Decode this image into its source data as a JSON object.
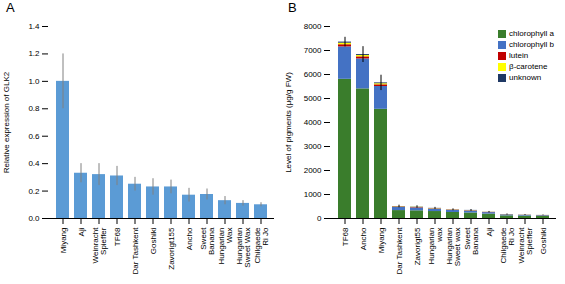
{
  "chart_data": [
    {
      "type": "bar",
      "title": "A",
      "categories": [
        "Miyang",
        "Aji",
        "Weinracht\nSpieffer",
        "TF68",
        "Dar Tashkent",
        "Goshiki",
        "Zavorigt155",
        "Ancho",
        "Sweet\nBanana",
        "Hungarian\nWax",
        "Hungarian\nSweet Wax",
        "Chilgaede\nRi Jo"
      ],
      "values": [
        1.0,
        0.33,
        0.32,
        0.31,
        0.25,
        0.23,
        0.23,
        0.17,
        0.175,
        0.13,
        0.11,
        0.1
      ],
      "errors": [
        0.2,
        0.07,
        0.08,
        0.07,
        0.05,
        0.06,
        0.05,
        0.05,
        0.04,
        0.03,
        0.02,
        0.015
      ],
      "color": "#5b9bd5",
      "ylabel": "Relative expression of GLK2",
      "ylim": [
        0,
        1.4
      ],
      "yticks": [
        {
          "value": 0,
          "label": "0.0"
        },
        0.2,
        0.4,
        0.6,
        0.8,
        {
          "value": 1.0,
          "label": "1.0"
        },
        1.2,
        1.4
      ],
      "grid": false
    },
    {
      "type": "bar",
      "title": "B",
      "stacked": true,
      "legend": "upper right",
      "categories": [
        "TF68",
        "Ancho",
        "Miyang",
        "Dar Tashkent",
        "Zavorigt55",
        "Hungarian\nwax",
        "Hungarian\nSweet wax",
        "Sweet\nBanana",
        "Aji",
        "Chilgaede\nRi Jo",
        "Weinracht\nSpieffer",
        "Goshiki"
      ],
      "series": [
        {
          "name": "chlorophyll a",
          "color": "#3a7d2c",
          "values": [
            5800,
            5400,
            4550,
            330,
            320,
            290,
            250,
            230,
            185,
            110,
            100,
            90
          ]
        },
        {
          "name": "chlorophyll b",
          "color": "#4472c4",
          "values": [
            1350,
            1250,
            950,
            130,
            120,
            100,
            85,
            80,
            60,
            40,
            33,
            28
          ]
        },
        {
          "name": "lutein",
          "color": "#c00000",
          "values": [
            90,
            85,
            70,
            18,
            16,
            14,
            12,
            12,
            8,
            6,
            5,
            5
          ]
        },
        {
          "name": "β-carotene",
          "color": "#ffff00",
          "values": [
            65,
            55,
            45,
            12,
            12,
            10,
            8,
            8,
            6,
            5,
            4,
            4
          ]
        },
        {
          "name": "unknown",
          "color": "#1f3864",
          "values": [
            45,
            40,
            35,
            10,
            10,
            8,
            7,
            7,
            5,
            4,
            3,
            3
          ]
        }
      ],
      "errors": [
        200,
        330,
        320,
        55,
        50,
        42,
        38,
        38,
        30,
        22,
        18,
        15
      ],
      "ylabel": "Level of pigments (μg/g FW)",
      "ylim": [
        0,
        8000
      ],
      "yticks": [
        0,
        1000,
        2000,
        3000,
        4000,
        5000,
        6000,
        7000,
        8000
      ],
      "grid": false
    }
  ]
}
